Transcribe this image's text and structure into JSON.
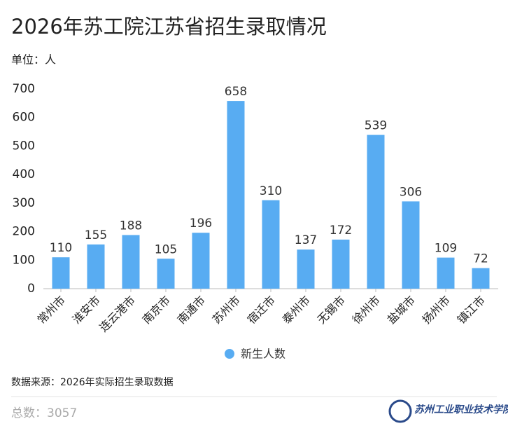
{
  "chart_data": {
    "type": "bar",
    "title": "2026年苏工院江苏省招生录取情况",
    "unit_label": "单位：人",
    "categories": [
      "常州市",
      "淮安市",
      "连云港市",
      "南京市",
      "南通市",
      "苏州市",
      "宿迁市",
      "泰州市",
      "无锡市",
      "徐州市",
      "盐城市",
      "扬州市",
      "镇江市"
    ],
    "series": [
      {
        "name": "新生人数",
        "color": "#58acf2",
        "values": [
          110,
          155,
          188,
          105,
          196,
          658,
          310,
          137,
          172,
          539,
          306,
          109,
          72
        ]
      }
    ],
    "ylim": [
      0,
      700
    ],
    "yticks": [
      0,
      100,
      200,
      300,
      400,
      500,
      600,
      700
    ],
    "grid": false,
    "legend": "bottom",
    "source": "数据来源：2026年实际招生录取数据",
    "total": "总数：3057",
    "logo_text": "苏州工业职业技术学院"
  }
}
